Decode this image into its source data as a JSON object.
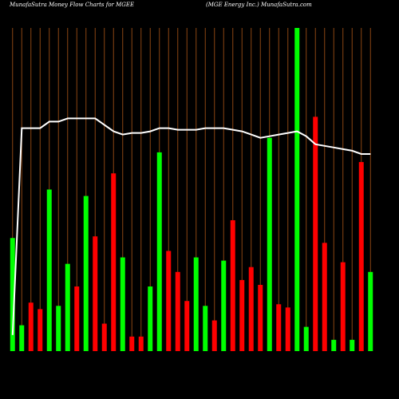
{
  "header": {
    "left": "MunafaSutra  Money Flow  Charts for MGEE",
    "right": "(MGE Energy Inc.) MunafaSutra.com"
  },
  "colors": {
    "background": "#000000",
    "grid": "#8B4513",
    "up": "#00ff00",
    "down": "#ff0000",
    "line": "#ffffff"
  },
  "chart_data": {
    "type": "bar",
    "title": "",
    "bars": [
      {
        "value": 0.35,
        "color": "up"
      },
      {
        "value": 0.08,
        "color": "up"
      },
      {
        "value": 0.15,
        "color": "down"
      },
      {
        "value": 0.13,
        "color": "down"
      },
      {
        "value": 0.5,
        "color": "up"
      },
      {
        "value": 0.14,
        "color": "up"
      },
      {
        "value": 0.27,
        "color": "up"
      },
      {
        "value": 0.2,
        "color": "down"
      },
      {
        "value": 0.48,
        "color": "up"
      },
      {
        "value": 0.355,
        "color": "down"
      },
      {
        "value": 0.085,
        "color": "down"
      },
      {
        "value": 0.55,
        "color": "down"
      },
      {
        "value": 0.29,
        "color": "up"
      },
      {
        "value": 0.045,
        "color": "down"
      },
      {
        "value": 0.045,
        "color": "down"
      },
      {
        "value": 0.2,
        "color": "up"
      },
      {
        "value": 0.615,
        "color": "up"
      },
      {
        "value": 0.31,
        "color": "down"
      },
      {
        "value": 0.245,
        "color": "down"
      },
      {
        "value": 0.155,
        "color": "down"
      },
      {
        "value": 0.29,
        "color": "up"
      },
      {
        "value": 0.14,
        "color": "up"
      },
      {
        "value": 0.095,
        "color": "down"
      },
      {
        "value": 0.28,
        "color": "up"
      },
      {
        "value": 0.405,
        "color": "down"
      },
      {
        "value": 0.22,
        "color": "down"
      },
      {
        "value": 0.26,
        "color": "down"
      },
      {
        "value": 0.205,
        "color": "down"
      },
      {
        "value": 0.66,
        "color": "up"
      },
      {
        "value": 0.145,
        "color": "down"
      },
      {
        "value": 0.135,
        "color": "down"
      },
      {
        "value": 1.0,
        "color": "up"
      },
      {
        "value": 0.075,
        "color": "up"
      },
      {
        "value": 0.725,
        "color": "down"
      },
      {
        "value": 0.335,
        "color": "down"
      },
      {
        "value": 0.035,
        "color": "up"
      },
      {
        "value": 0.275,
        "color": "down"
      },
      {
        "value": 0.035,
        "color": "up"
      },
      {
        "value": 0.585,
        "color": "down"
      },
      {
        "value": 0.245,
        "color": "up"
      }
    ],
    "line": [
      0.05,
      0.69,
      0.69,
      0.69,
      0.71,
      0.71,
      0.72,
      0.72,
      0.72,
      0.72,
      0.7,
      0.68,
      0.67,
      0.675,
      0.675,
      0.68,
      0.69,
      0.69,
      0.685,
      0.685,
      0.685,
      0.69,
      0.69,
      0.69,
      0.685,
      0.68,
      0.67,
      0.66,
      0.665,
      0.67,
      0.675,
      0.68,
      0.665,
      0.64,
      0.635,
      0.63,
      0.625,
      0.62,
      0.61,
      0.61
    ]
  }
}
